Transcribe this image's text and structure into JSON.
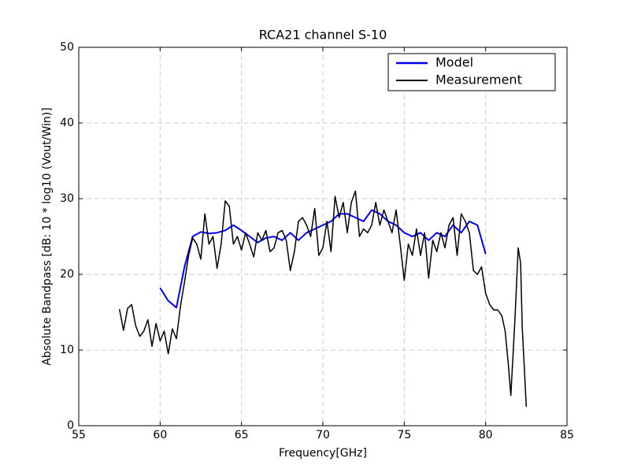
{
  "chart_data": {
    "type": "line",
    "title": "RCA21 channel S-10",
    "xlabel": "Frequency[GHz]",
    "ylabel": "Absolute Bandpass [dB: 10 * log10 (Vout/Win)]",
    "xlim": [
      55,
      85
    ],
    "ylim": [
      0,
      50
    ],
    "xticks": [
      55,
      60,
      65,
      70,
      75,
      80,
      85
    ],
    "yticks": [
      0,
      10,
      20,
      30,
      40,
      50
    ],
    "grid": true,
    "legend": "upper right",
    "series": [
      {
        "name": "Model",
        "color": "#0000ff",
        "width": 2,
        "x": [
          60,
          60.5,
          61,
          61.5,
          62,
          62.5,
          63,
          63.5,
          64,
          64.5,
          65,
          65.5,
          66,
          66.5,
          67,
          67.5,
          68,
          68.5,
          69,
          69.5,
          70,
          70.5,
          71,
          71.5,
          72,
          72.5,
          73,
          73.5,
          74,
          74.5,
          75,
          75.5,
          76,
          76.5,
          77,
          77.5,
          78,
          78.5,
          79,
          79.5,
          80
        ],
        "values": [
          18.2,
          16.5,
          15.6,
          21,
          25,
          25.6,
          25.4,
          25.5,
          25.8,
          26.5,
          25.8,
          25,
          24.2,
          24.8,
          25,
          24.5,
          25.5,
          24.5,
          25.5,
          26,
          26.5,
          27,
          28,
          28,
          27.5,
          27,
          28.5,
          28,
          27,
          26.5,
          25.5,
          25,
          25.5,
          24.5,
          25.5,
          25,
          26.5,
          25.5,
          27,
          26.5,
          22.7
        ]
      },
      {
        "name": "Measurement",
        "color": "#000000",
        "width": 1.5,
        "x": [
          57.5,
          57.75,
          58,
          58.25,
          58.5,
          58.75,
          59,
          59.25,
          59.5,
          59.75,
          60,
          60.25,
          60.5,
          60.75,
          61,
          61.25,
          61.5,
          61.75,
          62,
          62.25,
          62.5,
          62.75,
          63,
          63.25,
          63.5,
          63.75,
          64,
          64.25,
          64.5,
          64.75,
          65,
          65.25,
          65.5,
          65.75,
          66,
          66.25,
          66.5,
          66.75,
          67,
          67.25,
          67.5,
          67.75,
          68,
          68.25,
          68.5,
          68.75,
          69,
          69.25,
          69.5,
          69.75,
          70,
          70.25,
          70.5,
          70.75,
          71,
          71.25,
          71.5,
          71.75,
          72,
          72.25,
          72.5,
          72.75,
          73,
          73.25,
          73.5,
          73.75,
          74,
          74.25,
          74.5,
          74.75,
          75,
          75.25,
          75.5,
          75.75,
          76,
          76.25,
          76.5,
          76.75,
          77,
          77.25,
          77.5,
          77.75,
          78,
          78.25,
          78.5,
          78.75,
          79,
          79.25,
          79.5,
          79.75,
          80,
          80.25,
          80.5,
          80.75,
          81,
          81.2,
          81.4,
          81.55,
          81.8,
          82,
          82.15,
          82.25,
          82.5
        ],
        "values": [
          15.4,
          12.6,
          15.5,
          16,
          13.2,
          11.8,
          12.5,
          14,
          10.5,
          13.5,
          11.2,
          12.5,
          9.5,
          12.8,
          11.5,
          15.8,
          19,
          22.5,
          24.8,
          24,
          22,
          28,
          24,
          25,
          20.8,
          24,
          29.7,
          29,
          24,
          25,
          23.2,
          25.5,
          24,
          22.3,
          25.5,
          24.5,
          25.8,
          23,
          23.5,
          25.5,
          25.8,
          24.5,
          20.5,
          23,
          27,
          27.5,
          26.5,
          25,
          28.7,
          22.5,
          23.5,
          27,
          23,
          30.3,
          27.5,
          29.5,
          25.5,
          29.5,
          31,
          25,
          26,
          25.5,
          26.5,
          29.5,
          26.5,
          28.5,
          27,
          25.5,
          28.5,
          24,
          19.2,
          24,
          22.5,
          26,
          22.5,
          25.5,
          19.5,
          24.5,
          23,
          25.5,
          23.5,
          26.5,
          27.5,
          22.5,
          28,
          27,
          25.5,
          20.5,
          20,
          21,
          17.5,
          16,
          15.3,
          15.3,
          14.5,
          12.5,
          8,
          4,
          14,
          23.5,
          21.5,
          13,
          2.5
        ]
      }
    ]
  }
}
